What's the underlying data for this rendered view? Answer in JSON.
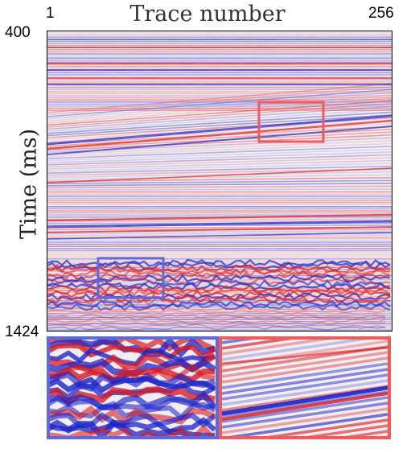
{
  "header": {
    "title": "Trace number"
  },
  "x_axis": {
    "left_tick": "1",
    "right_tick": "256"
  },
  "y_axis": {
    "label": "Time (ms)",
    "top_tick": "400",
    "bottom_tick": "1424"
  },
  "colors": {
    "positive": "#d8181e",
    "negative": "#1a22c8",
    "neutral": "#f6f2f4",
    "red_box": "#ef5b5b",
    "blue_box": "#5e6ad8"
  },
  "insets": [
    {
      "name": "blue-inset",
      "color": "blue"
    },
    {
      "name": "red-inset",
      "color": "red"
    }
  ]
}
